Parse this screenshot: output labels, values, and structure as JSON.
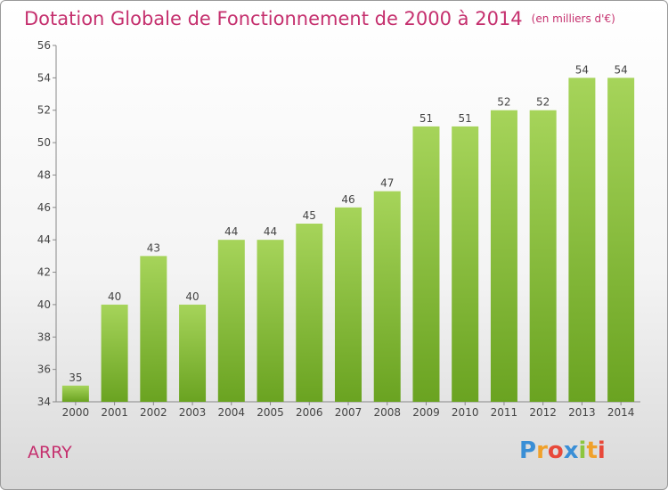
{
  "header": {
    "title": "Dotation Globale de Fonctionnement de 2000 à 2014",
    "unit": "(en milliers d'€)"
  },
  "footer": {
    "commune": "ARRY",
    "logo": [
      "P",
      "r",
      "o",
      "x",
      "i",
      "t",
      "i"
    ]
  },
  "colors": {
    "title": "#c5306e",
    "bar_light": "#a6d45a",
    "bar_dark": "#6aa321"
  },
  "chart_data": {
    "type": "bar",
    "title": "Dotation Globale de Fonctionnement de 2000 à 2014",
    "xlabel": "",
    "ylabel": "",
    "categories": [
      "2000",
      "2001",
      "2002",
      "2003",
      "2004",
      "2005",
      "2006",
      "2007",
      "2008",
      "2009",
      "2010",
      "2011",
      "2012",
      "2013",
      "2014"
    ],
    "values": [
      35,
      40,
      43,
      40,
      44,
      44,
      45,
      46,
      47,
      51,
      51,
      52,
      52,
      54,
      54
    ],
    "ylim": [
      34,
      56
    ],
    "yticks": [
      34,
      36,
      38,
      40,
      42,
      44,
      46,
      48,
      50,
      52,
      54,
      56
    ],
    "grid": false,
    "legend": "none"
  }
}
